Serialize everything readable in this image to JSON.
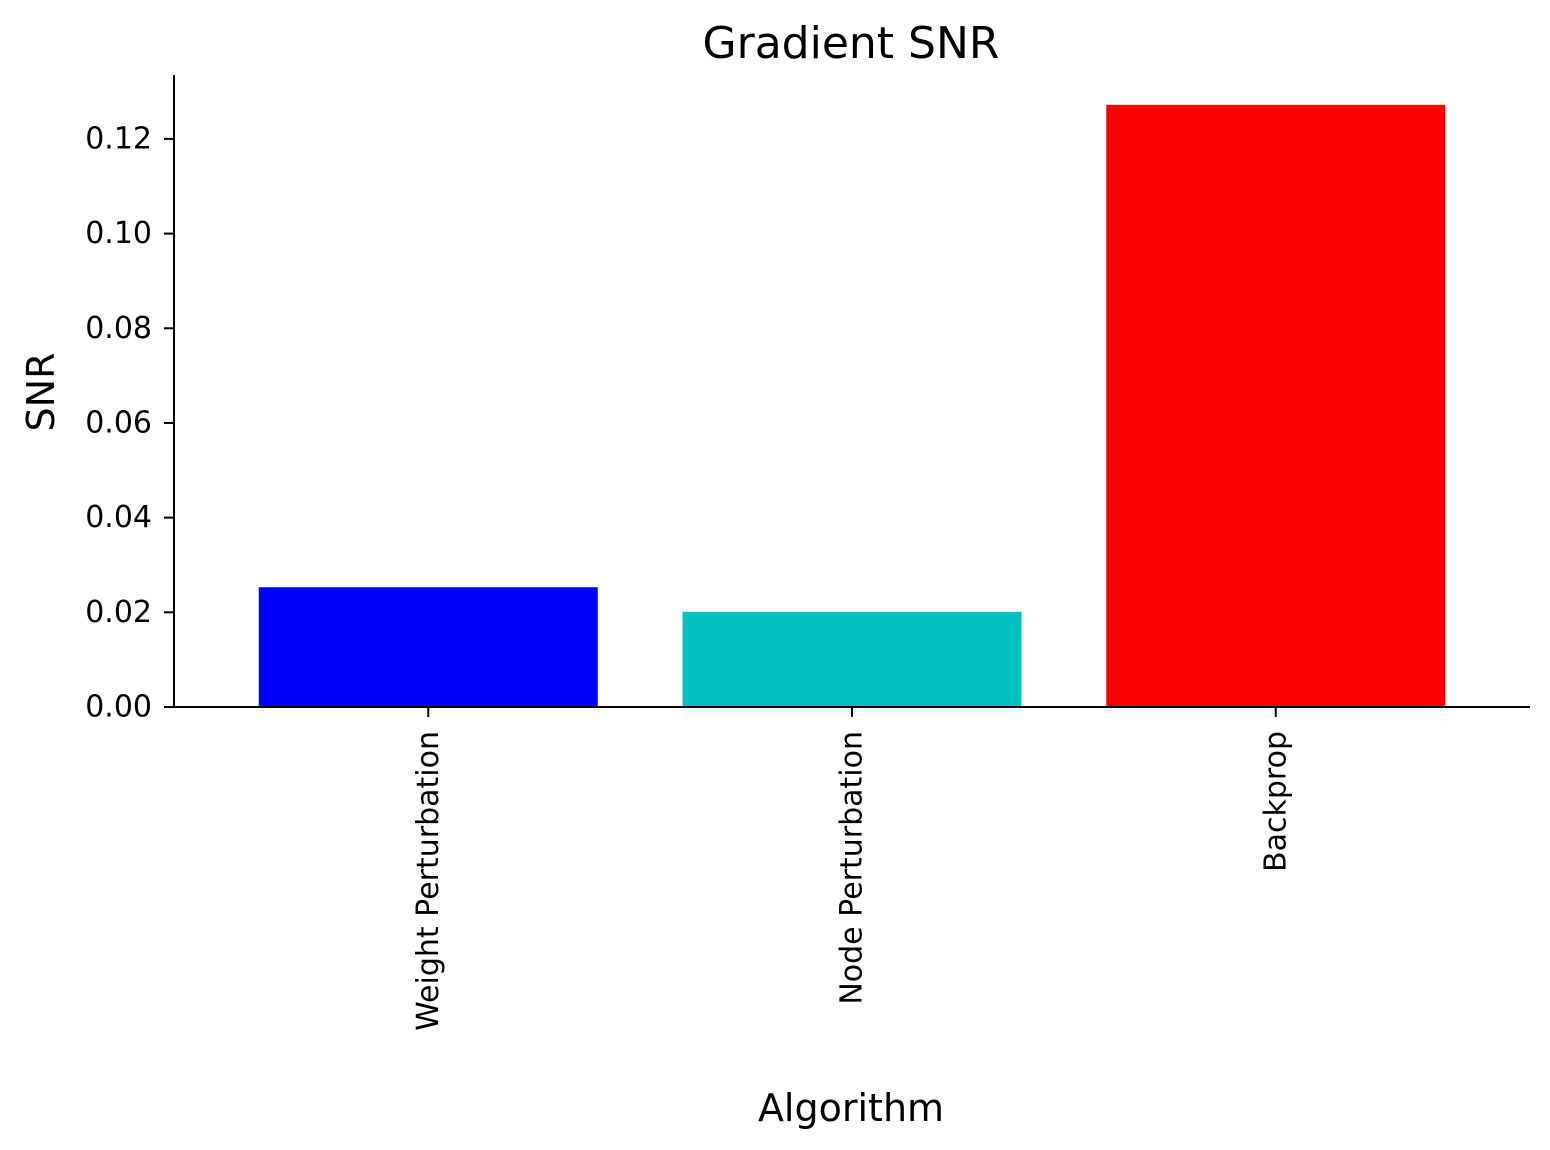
{
  "chart_data": {
    "type": "bar",
    "title": "Gradient SNR",
    "xlabel": "Algorithm",
    "ylabel": "SNR",
    "categories": [
      "Weight Perturbation",
      "Node Perturbation",
      "Backprop"
    ],
    "values": [
      0.0253,
      0.0201,
      0.1272
    ],
    "colors": [
      "#0000ff",
      "#00bfbf",
      "#ff0000"
    ],
    "ylim": [
      0,
      0.1335
    ],
    "yticks": [
      0.0,
      0.02,
      0.04,
      0.06,
      0.08,
      0.1,
      0.12
    ],
    "ytick_labels": [
      "0.00",
      "0.02",
      "0.04",
      "0.06",
      "0.08",
      "0.10",
      "0.12"
    ],
    "grid": false,
    "legend": "none"
  }
}
